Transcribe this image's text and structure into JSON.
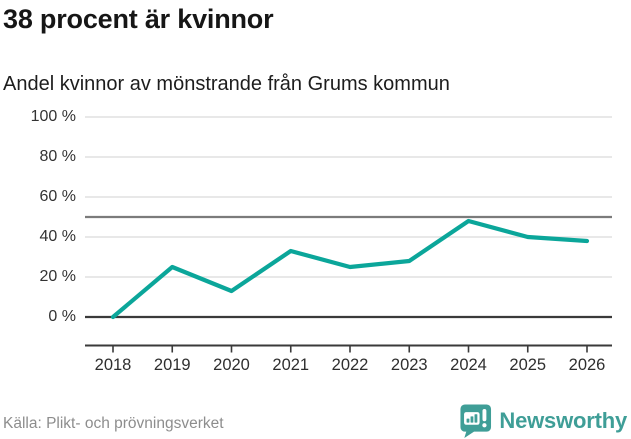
{
  "header": {
    "title": "38 procent är kvinnor",
    "subtitle": "Andel kvinnor av mönstrande från Grums kommun"
  },
  "chart_data": {
    "type": "line",
    "title": "38 procent är kvinnor",
    "subtitle": "Andel kvinnor av mönstrande från Grums kommun",
    "x": [
      "2018",
      "2019",
      "2020",
      "2021",
      "2022",
      "2023",
      "2024",
      "2025",
      "2026"
    ],
    "series": [
      {
        "name": "Andel kvinnor av mönstrande från Grums kommun",
        "values": [
          0,
          25,
          13,
          33,
          25,
          28,
          48,
          40,
          38
        ]
      }
    ],
    "unit": "%",
    "ylim": [
      0,
      100
    ],
    "yticks": [
      0,
      20,
      40,
      60,
      80,
      100
    ],
    "ytick_labels": [
      "0 %",
      "20 %",
      "40 %",
      "60 %",
      "80 %",
      "100 %"
    ],
    "reference_line": 50,
    "grid": true,
    "legend": "none",
    "line_color": "#0ba69a",
    "grid_color": "#e0e0e0",
    "reference_line_color": "#7b7b7b",
    "axis_color": "#3a3a3a"
  },
  "footer": {
    "source": "Källa: Plikt- och prövningsverket",
    "brand": "Newsworthy",
    "brand_color": "#3f9e97"
  }
}
